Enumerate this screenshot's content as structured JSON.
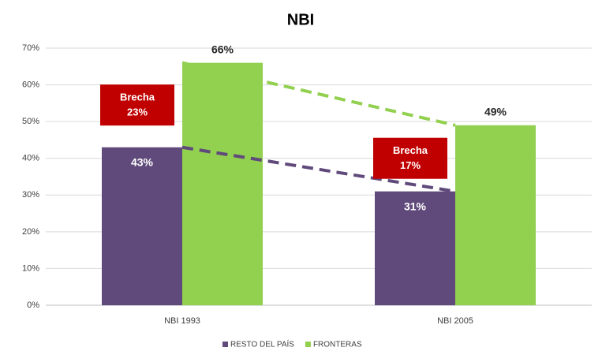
{
  "chart_data": {
    "type": "bar",
    "title": "NBI",
    "categories": [
      "NBI 1993",
      "NBI 2005"
    ],
    "series": [
      {
        "name": "RESTO DEL PAÍS",
        "color": "#604a7b",
        "values": [
          43,
          31
        ],
        "value_labels": [
          "43%",
          "31%"
        ]
      },
      {
        "name": "FRONTERAS",
        "color": "#92d050",
        "values": [
          66,
          49
        ],
        "value_labels": [
          "66%",
          "49%"
        ]
      }
    ],
    "annotations": [
      [
        "Brecha",
        "23%"
      ],
      [
        "Brecha",
        "17%"
      ]
    ],
    "annotation_color": "#c00000",
    "ylim": [
      0,
      70
    ],
    "yticks": [
      {
        "value": 0,
        "label": "0%"
      },
      {
        "value": 10,
        "label": "10%"
      },
      {
        "value": 20,
        "label": "20%"
      },
      {
        "value": 30,
        "label": "30%"
      },
      {
        "value": 40,
        "label": "40%"
      },
      {
        "value": 50,
        "label": "50%"
      },
      {
        "value": 60,
        "label": "60%"
      },
      {
        "value": 70,
        "label": "70%"
      }
    ],
    "grid": true,
    "legend": "bottom"
  }
}
